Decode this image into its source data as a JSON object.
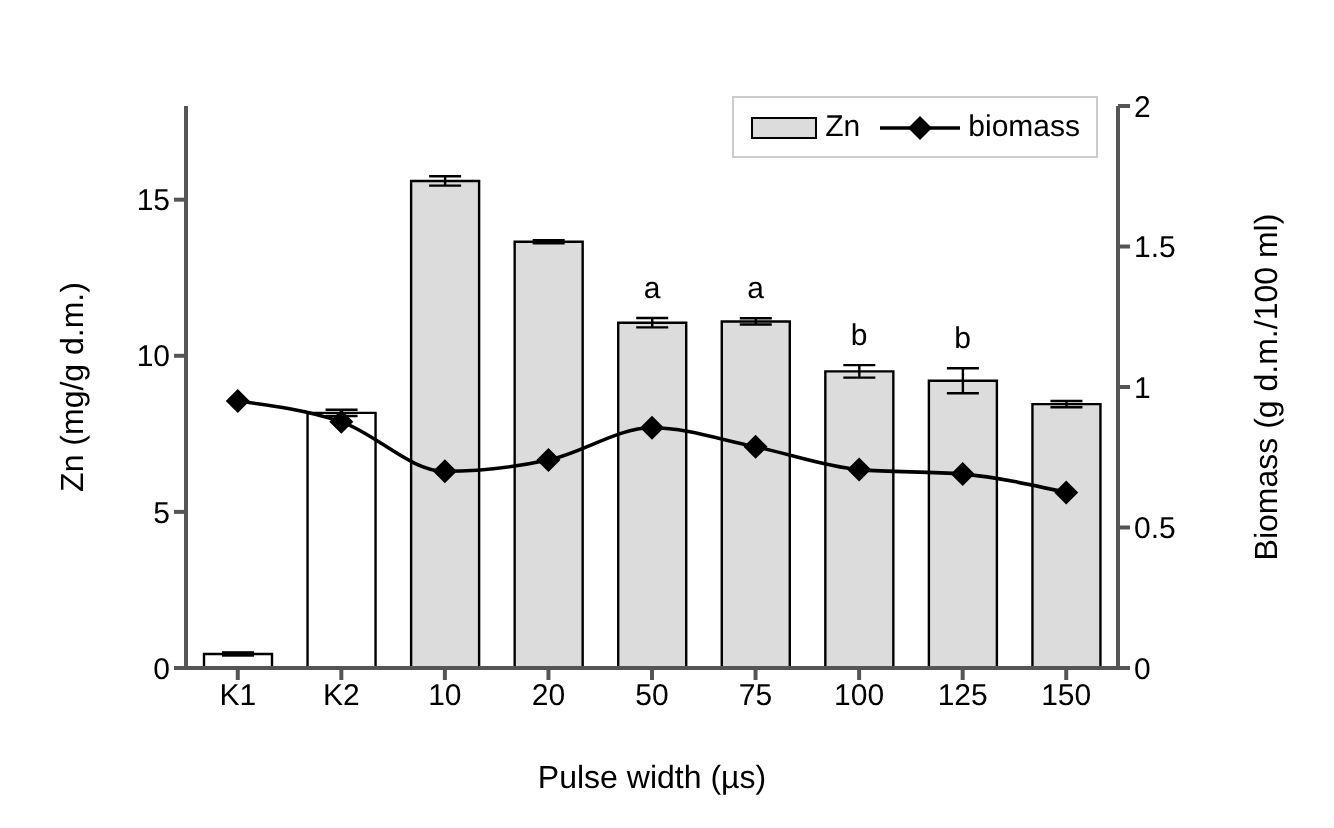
{
  "chart_data": {
    "type": "bar",
    "xlabel": "Pulse width (µs)",
    "ylabel": "Zn (mg/g d.m.)",
    "y2label": "Biomass (g d.m./100 ml)",
    "categories": [
      "K1",
      "K2",
      "10",
      "20",
      "50",
      "75",
      "100",
      "125",
      "150"
    ],
    "series": [
      {
        "name": "Zn",
        "color": "#dcdcdc",
        "colors": [
          "#ffffff",
          "#ffffff",
          "#dcdcdc",
          "#dcdcdc",
          "#dcdcdc",
          "#dcdcdc",
          "#dcdcdc",
          "#dcdcdc",
          "#dcdcdc"
        ],
        "values": [
          0.45,
          8.17,
          15.6,
          13.65,
          11.06,
          11.1,
          9.5,
          9.2,
          8.45
        ],
        "errors": [
          0.05,
          0.1,
          0.15,
          0.05,
          0.15,
          0.1,
          0.2,
          0.4,
          0.1
        ]
      },
      {
        "name": "biomass",
        "type": "line",
        "axis": "y2",
        "color": "#000000",
        "marker": "diamond",
        "values": [
          0.95,
          0.876,
          0.7,
          0.74,
          0.855,
          0.787,
          0.706,
          0.69,
          0.625
        ]
      }
    ],
    "ylim": [
      0,
      18
    ],
    "yticks": [
      0,
      5,
      10,
      15
    ],
    "y2lim": [
      0,
      2
    ],
    "y2ticks": [
      0,
      0.5,
      1,
      1.5,
      2
    ],
    "annotations": [
      {
        "text": "a",
        "x": "50",
        "y": 11.21
      },
      {
        "text": "a",
        "x": "75",
        "y": 11.2
      },
      {
        "text": "b",
        "x": "100",
        "y": 9.7
      },
      {
        "text": "b",
        "x": "125",
        "y": 9.6
      }
    ],
    "legend": "top right",
    "grid": false
  }
}
